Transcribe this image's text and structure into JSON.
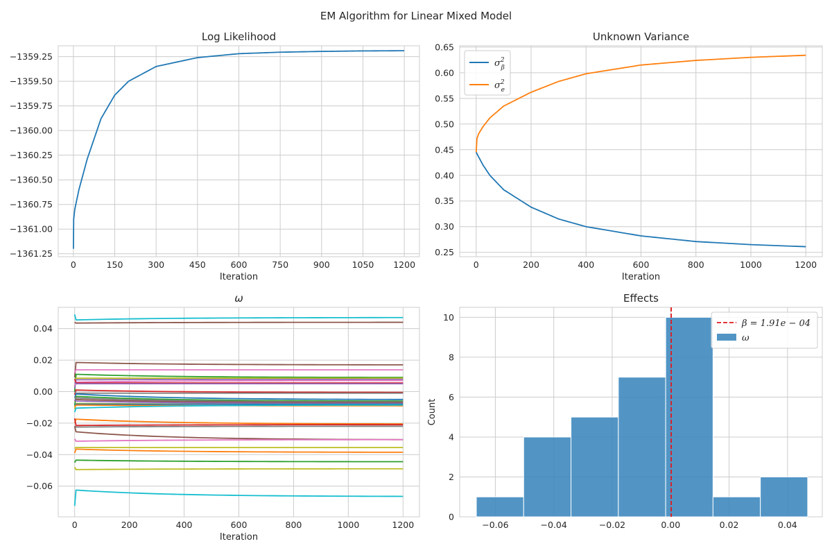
{
  "suptitle": "EM Algorithm for Linear Mixed Model",
  "colors": {
    "tab_blue": "#1f77b4",
    "tab_orange": "#ff7f0e",
    "hist_fill": "#3a86bd",
    "beta_line": "#e3171b",
    "grid": "#cccccc"
  },
  "chart_data": [
    {
      "id": "loglik",
      "type": "line",
      "title": "Log Likelihood",
      "xlabel": "Iteration",
      "ylabel": "",
      "xlim": [
        -55,
        1255
      ],
      "ylim": [
        -1361.28,
        -1359.14
      ],
      "xticks": [
        0,
        150,
        300,
        450,
        600,
        750,
        900,
        1050,
        1200
      ],
      "xtick_labels": [
        "0",
        "150",
        "300",
        "450",
        "600",
        "750",
        "900",
        "1050",
        "1200"
      ],
      "yticks": [
        -1361.25,
        -1361.0,
        -1360.75,
        -1360.5,
        -1360.25,
        -1360.0,
        -1359.75,
        -1359.5,
        -1359.25
      ],
      "ytick_labels": [
        "−1361.25",
        "−1361.00",
        "−1360.75",
        "−1360.50",
        "−1360.25",
        "−1360.00",
        "−1359.75",
        "−1359.50",
        "−1359.25"
      ],
      "grid": true,
      "series": [
        {
          "color": "#1f77b4",
          "x": [
            0,
            1,
            5,
            20,
            50,
            100,
            150,
            200,
            300,
            450,
            600,
            750,
            900,
            1050,
            1200
          ],
          "y": [
            -1361.2,
            -1360.9,
            -1360.8,
            -1360.6,
            -1360.29,
            -1359.88,
            -1359.64,
            -1359.5,
            -1359.35,
            -1359.26,
            -1359.22,
            -1359.205,
            -1359.197,
            -1359.192,
            -1359.19
          ]
        }
      ]
    },
    {
      "id": "variance",
      "type": "line",
      "title": "Unknown Variance",
      "xlabel": "Iteration",
      "ylabel": "",
      "xlim": [
        -60,
        1260
      ],
      "ylim": [
        0.2415,
        0.6525
      ],
      "xticks": [
        0,
        200,
        400,
        600,
        800,
        1000,
        1200
      ],
      "xtick_labels": [
        "0",
        "200",
        "400",
        "600",
        "800",
        "1000",
        "1200"
      ],
      "yticks": [
        0.25,
        0.3,
        0.35,
        0.4,
        0.45,
        0.5,
        0.55,
        0.6,
        0.65
      ],
      "ytick_labels": [
        "0.25",
        "0.30",
        "0.35",
        "0.40",
        "0.45",
        "0.50",
        "0.55",
        "0.60",
        "0.65"
      ],
      "grid": true,
      "legend": "top-left",
      "series": [
        {
          "name": "σ_β²",
          "legend_main": "σ",
          "legend_sub": "β",
          "legend_sup": "2",
          "color": "#1f77b4",
          "x": [
            0,
            10,
            25,
            50,
            100,
            200,
            300,
            400,
            600,
            800,
            1000,
            1200
          ],
          "y": [
            0.445,
            0.435,
            0.42,
            0.4,
            0.372,
            0.338,
            0.315,
            0.3,
            0.282,
            0.271,
            0.265,
            0.261
          ]
        },
        {
          "name": "σ_e²",
          "legend_main": "σ",
          "legend_sub": "e",
          "legend_sup": "2",
          "color": "#ff7f0e",
          "x": [
            0,
            3,
            10,
            25,
            50,
            100,
            200,
            300,
            400,
            600,
            800,
            1000,
            1200
          ],
          "y": [
            0.445,
            0.472,
            0.482,
            0.495,
            0.512,
            0.535,
            0.562,
            0.583,
            0.598,
            0.615,
            0.624,
            0.63,
            0.634
          ]
        }
      ]
    },
    {
      "id": "omega",
      "type": "line",
      "title": "ω",
      "xlabel": "Iteration",
      "ylabel": "",
      "xlim": [
        -60,
        1260
      ],
      "ylim": [
        -0.0795,
        0.0535
      ],
      "xticks": [
        0,
        200,
        400,
        600,
        800,
        1000,
        1200
      ],
      "xtick_labels": [
        "0",
        "200",
        "400",
        "600",
        "800",
        "1000",
        "1200"
      ],
      "yticks": [
        -0.06,
        -0.04,
        -0.02,
        0.0,
        0.02,
        0.04
      ],
      "ytick_labels": [
        "−0.06",
        "−0.04",
        "−0.02",
        "0.00",
        "0.02",
        "0.04"
      ],
      "grid": true,
      "series": [
        {
          "color": "#17becf",
          "start": 0.049,
          "near": 0.0455,
          "end": 0.047
        },
        {
          "color": "#8c564b",
          "start": 0.044,
          "near": 0.0435,
          "end": 0.044
        },
        {
          "color": "#8c564b",
          "start": 0.009,
          "near": 0.0185,
          "end": 0.017
        },
        {
          "color": "#e377c2",
          "start": 0.012,
          "near": 0.0138,
          "end": 0.0138
        },
        {
          "color": "#2ca02c",
          "start": 0.0,
          "near": 0.011,
          "end": 0.009
        },
        {
          "color": "#bcbd22",
          "start": 0.003,
          "near": 0.0085,
          "end": 0.0085
        },
        {
          "color": "#9467bd",
          "start": 0.002,
          "near": 0.0075,
          "end": 0.0078
        },
        {
          "color": "#e377c2",
          "start": 0.004,
          "near": 0.006,
          "end": 0.007
        },
        {
          "color": "#d62728",
          "start": 0.008,
          "near": 0.0055,
          "end": 0.0055
        },
        {
          "color": "#9467bd",
          "start": 0.006,
          "near": 0.005,
          "end": 0.005
        },
        {
          "color": "#d62728",
          "start": -0.002,
          "near": 0.001,
          "end": -0.0005
        },
        {
          "color": "#7f7f7f",
          "start": 0.0,
          "near": -0.001,
          "end": -0.001
        },
        {
          "color": "#1f77b4",
          "start": -0.004,
          "near": -0.0015,
          "end": -0.005
        },
        {
          "color": "#2ca02c",
          "start": -0.009,
          "near": -0.003,
          "end": -0.006
        },
        {
          "color": "#7f7f7f",
          "start": -0.003,
          "near": -0.004,
          "end": -0.0065
        },
        {
          "color": "#8c564b",
          "start": -0.006,
          "near": -0.005,
          "end": -0.007
        },
        {
          "color": "#9467bd",
          "start": -0.005,
          "near": -0.006,
          "end": -0.0075
        },
        {
          "color": "#bcbd22",
          "start": -0.011,
          "near": -0.0075,
          "end": -0.008
        },
        {
          "color": "#1f77b4",
          "start": -0.008,
          "near": -0.008,
          "end": -0.008
        },
        {
          "color": "#ff7f0e",
          "start": -0.01,
          "near": -0.0085,
          "end": -0.009
        },
        {
          "color": "#17becf",
          "start": -0.013,
          "near": -0.0105,
          "end": -0.0085
        },
        {
          "color": "#ff7f0e",
          "start": -0.02,
          "near": -0.0175,
          "end": -0.0205
        },
        {
          "color": "#d62728",
          "start": -0.017,
          "near": -0.0215,
          "end": -0.021
        },
        {
          "color": "#7f7f7f",
          "start": -0.022,
          "near": -0.0225,
          "end": -0.022
        },
        {
          "color": "#8c564b",
          "start": -0.022,
          "near": -0.0255,
          "end": -0.0305
        },
        {
          "color": "#e377c2",
          "start": -0.03,
          "near": -0.0315,
          "end": -0.0305
        },
        {
          "color": "#bcbd22",
          "start": -0.036,
          "near": -0.0355,
          "end": -0.0355
        },
        {
          "color": "#ff7f0e",
          "start": -0.039,
          "near": -0.0365,
          "end": -0.0385
        },
        {
          "color": "#2ca02c",
          "start": -0.045,
          "near": -0.0435,
          "end": -0.0445
        },
        {
          "color": "#bcbd22",
          "start": -0.048,
          "near": -0.0495,
          "end": -0.049
        },
        {
          "color": "#17becf",
          "start": -0.0725,
          "near": -0.0625,
          "end": -0.0665
        }
      ]
    },
    {
      "id": "effects",
      "type": "bar",
      "subtype": "histogram",
      "title": "Effects",
      "xlabel": "",
      "ylabel": "Count",
      "xlim": [
        -0.0722,
        0.0519
      ],
      "ylim": [
        0,
        10.5
      ],
      "xticks": [
        -0.06,
        -0.04,
        -0.02,
        0.0,
        0.02,
        0.04
      ],
      "xtick_labels": [
        "−0.06",
        "−0.04",
        "−0.02",
        "0.00",
        "0.02",
        "0.04"
      ],
      "yticks": [
        0,
        2,
        4,
        6,
        8,
        10
      ],
      "ytick_labels": [
        "0",
        "2",
        "4",
        "6",
        "8",
        "10"
      ],
      "grid": true,
      "legend": "top-right",
      "bin_edges": [
        -0.0665,
        -0.0503,
        -0.0341,
        -0.0179,
        -0.0017,
        0.0145,
        0.0307,
        0.0469
      ],
      "counts": [
        1,
        4,
        5,
        7,
        10,
        1,
        2
      ],
      "vline": 0.000191,
      "legend_entries": [
        {
          "kind": "dashed-line",
          "color": "#e3171b",
          "label": "β = 1.91e − 04"
        },
        {
          "kind": "patch",
          "color": "#3a86bd",
          "label": "ω"
        }
      ]
    }
  ]
}
